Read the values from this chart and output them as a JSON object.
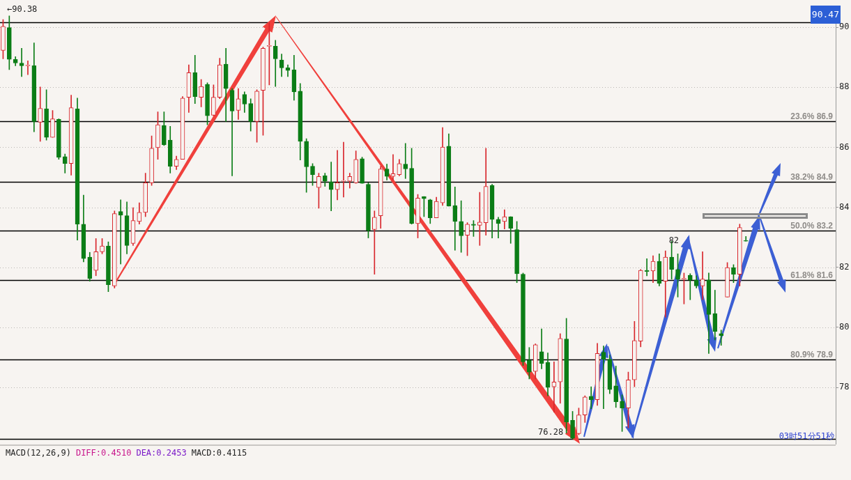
{
  "chart_data": {
    "type": "candlestick",
    "categories": [
      null,
      null,
      null,
      null,
      null,
      null,
      null,
      null,
      null,
      null,
      null,
      null,
      null,
      null,
      null,
      null,
      null,
      null,
      null,
      null,
      null,
      null,
      null,
      null,
      null,
      null,
      null,
      null,
      null,
      null,
      null,
      null,
      null,
      null,
      null,
      null,
      null,
      null,
      null,
      null,
      null,
      null,
      null,
      null,
      null,
      null,
      null,
      null,
      null,
      null,
      null,
      null,
      null,
      null,
      null,
      null,
      null,
      null,
      null,
      null,
      null,
      null,
      null,
      null,
      null,
      null,
      null,
      null,
      null,
      null,
      null,
      null,
      null,
      null,
      null,
      null,
      null,
      null,
      null,
      null,
      null,
      null,
      null,
      null,
      null,
      null,
      null,
      null,
      null,
      null,
      null,
      null,
      null,
      null,
      null,
      null,
      null,
      null,
      null,
      null,
      null,
      null,
      null,
      null,
      null,
      null,
      null,
      null,
      null,
      null,
      null,
      null,
      null,
      null,
      null,
      null,
      null,
      null,
      null,
      null,
      null,
      null,
      null,
      null,
      null,
      null,
      null,
      null,
      null,
      null,
      null,
      null,
      null,
      null,
      null
    ],
    "ohlc": [
      [
        89.23,
        90.26,
        88.95,
        90.03
      ],
      [
        89.99,
        90.38,
        88.59,
        88.93
      ],
      [
        88.93,
        89.02,
        88.72,
        88.81
      ],
      [
        88.81,
        89.3,
        88.36,
        88.72
      ],
      [
        88.72,
        88.88,
        88.42,
        88.72
      ],
      [
        88.72,
        89.48,
        86.52,
        86.86
      ],
      [
        86.84,
        88.01,
        86.2,
        87.3
      ],
      [
        87.28,
        87.92,
        86.24,
        86.33
      ],
      [
        86.33,
        87.23,
        86.33,
        86.95
      ],
      [
        86.93,
        86.95,
        85.6,
        85.67
      ],
      [
        85.69,
        85.78,
        85.14,
        85.46
      ],
      [
        85.46,
        87.74,
        85.07,
        87.32
      ],
      [
        87.28,
        87.64,
        82.91,
        83.44
      ],
      [
        83.44,
        84.41,
        82.18,
        82.29
      ],
      [
        82.34,
        82.5,
        81.54,
        81.63
      ],
      [
        81.9,
        82.96,
        81.72,
        82.52
      ],
      [
        82.52,
        82.96,
        82.45,
        82.71
      ],
      [
        82.71,
        82.85,
        81.19,
        81.42
      ],
      [
        81.38,
        83.88,
        81.31,
        83.79
      ],
      [
        83.86,
        84.25,
        82.11,
        83.74
      ],
      [
        83.72,
        84.18,
        82.45,
        82.73
      ],
      [
        82.8,
        83.99,
        82.73,
        83.56
      ],
      [
        83.53,
        84.15,
        83.44,
        83.83
      ],
      [
        83.83,
        85.14,
        83.69,
        84.82
      ],
      [
        84.82,
        86.38,
        84.73,
        85.97
      ],
      [
        85.99,
        87.18,
        85.6,
        86.75
      ],
      [
        86.73,
        87.18,
        86.06,
        86.08
      ],
      [
        86.24,
        86.7,
        85.14,
        85.37
      ],
      [
        85.37,
        85.71,
        85.26,
        85.6
      ],
      [
        85.6,
        87.69,
        85.6,
        87.64
      ],
      [
        87.67,
        88.75,
        87.16,
        88.49
      ],
      [
        88.49,
        89.07,
        87.46,
        87.69
      ],
      [
        87.67,
        88.26,
        87.35,
        88.03
      ],
      [
        88.1,
        88.15,
        86.75,
        87.05
      ],
      [
        87.07,
        88.08,
        87.05,
        87.67
      ],
      [
        87.67,
        88.97,
        87.62,
        88.75
      ],
      [
        88.77,
        89.3,
        86.86,
        87.96
      ],
      [
        87.9,
        87.96,
        85.05,
        87.21
      ],
      [
        87.23,
        87.96,
        86.93,
        87.62
      ],
      [
        87.76,
        87.85,
        87.16,
        87.44
      ],
      [
        87.46,
        87.62,
        86.54,
        86.86
      ],
      [
        86.86,
        87.92,
        86.17,
        87.87
      ],
      [
        87.9,
        89.34,
        86.4,
        89.3
      ],
      [
        89.37,
        90.16,
        88.08,
        89.37
      ],
      [
        89.37,
        89.57,
        88.03,
        88.95
      ],
      [
        88.91,
        89.11,
        88.36,
        88.65
      ],
      [
        88.65,
        88.75,
        88.36,
        88.56
      ],
      [
        88.58,
        89.07,
        87.57,
        87.85
      ],
      [
        87.87,
        88.13,
        85.58,
        86.2
      ],
      [
        86.2,
        86.29,
        84.5,
        85.35
      ],
      [
        85.37,
        85.46,
        84.73,
        85.09
      ],
      [
        84.66,
        85.14,
        83.97,
        85.03
      ],
      [
        85.05,
        85.14,
        84.7,
        84.87
      ],
      [
        84.84,
        85.51,
        83.88,
        84.59
      ],
      [
        84.59,
        85.9,
        84.25,
        84.82
      ],
      [
        84.87,
        86.17,
        84.34,
        84.87
      ],
      [
        84.87,
        85.14,
        84.64,
        85.03
      ],
      [
        84.82,
        85.88,
        84.8,
        85.6
      ],
      [
        85.62,
        85.67,
        84.8,
        84.8
      ],
      [
        84.77,
        84.82,
        82.98,
        83.23
      ],
      [
        83.26,
        83.88,
        81.77,
        83.67
      ],
      [
        83.72,
        85.37,
        83.3,
        85.28
      ],
      [
        85.28,
        85.44,
        84.91,
        85.03
      ],
      [
        85.03,
        85.76,
        84.91,
        85.12
      ],
      [
        85.09,
        85.6,
        85.05,
        85.46
      ],
      [
        85.44,
        86.13,
        84.96,
        85.28
      ],
      [
        85.3,
        85.97,
        83.44,
        83.46
      ],
      [
        83.46,
        84.43,
        82.98,
        84.31
      ],
      [
        84.36,
        84.36,
        83.69,
        84.29
      ],
      [
        84.25,
        84.27,
        83.46,
        83.65
      ],
      [
        83.65,
        84.34,
        83.65,
        84.2
      ],
      [
        84.15,
        86.66,
        84.06,
        86.01
      ],
      [
        86.04,
        86.45,
        84.04,
        84.04
      ],
      [
        84.06,
        84.68,
        82.57,
        83.53
      ],
      [
        83.53,
        84.22,
        82.5,
        83.05
      ],
      [
        83.07,
        83.49,
        82.39,
        83.44
      ],
      [
        83.44,
        83.56,
        83.03,
        83.4
      ],
      [
        83.4,
        84.5,
        82.73,
        83.51
      ],
      [
        83.49,
        85.97,
        83.07,
        84.7
      ],
      [
        84.73,
        84.77,
        82.98,
        83.6
      ],
      [
        83.6,
        83.67,
        82.98,
        83.46
      ],
      [
        83.53,
        83.92,
        83.28,
        83.69
      ],
      [
        83.69,
        83.69,
        82.8,
        83.3
      ],
      [
        83.26,
        83.53,
        81.49,
        81.79
      ],
      [
        81.77,
        81.81,
        78.73,
        78.85
      ],
      [
        78.9,
        79.33,
        78.28,
        78.51
      ],
      [
        78.53,
        79.45,
        78.28,
        79.42
      ],
      [
        79.19,
        79.95,
        78.62,
        78.8
      ],
      [
        78.83,
        79.15,
        77.72,
        78.0
      ],
      [
        78.02,
        78.85,
        77.17,
        78.18
      ],
      [
        78.18,
        79.79,
        77.47,
        79.63
      ],
      [
        79.61,
        80.3,
        76.48,
        76.85
      ],
      [
        76.9,
        77.2,
        76.28,
        76.3
      ],
      [
        76.46,
        77.31,
        76.42,
        77.08
      ],
      [
        77.08,
        77.72,
        76.83,
        77.68
      ],
      [
        77.7,
        78.02,
        77.29,
        77.59
      ],
      [
        77.59,
        79.47,
        77.4,
        79.13
      ],
      [
        79.17,
        79.38,
        77.29,
        78.94
      ],
      [
        78.94,
        79.08,
        77.79,
        77.93
      ],
      [
        78.05,
        78.71,
        77.33,
        77.52
      ],
      [
        77.54,
        77.75,
        76.53,
        77.31
      ],
      [
        77.31,
        78.51,
        76.65,
        78.25
      ],
      [
        78.25,
        80.2,
        78.02,
        79.56
      ],
      [
        79.54,
        81.93,
        79.35,
        81.9
      ],
      [
        81.9,
        82.29,
        81.72,
        81.86
      ],
      [
        81.88,
        82.39,
        81.49,
        82.2
      ],
      [
        82.2,
        82.45,
        81.38,
        81.47
      ],
      [
        81.54,
        82.55,
        80.34,
        82.34
      ],
      [
        82.34,
        82.87,
        81.61,
        81.93
      ],
      [
        81.93,
        82.45,
        81.01,
        81.61
      ],
      [
        81.61,
        81.81,
        80.78,
        81.61
      ],
      [
        81.74,
        81.79,
        80.92,
        81.58
      ],
      [
        81.58,
        81.72,
        81.31,
        81.38
      ],
      [
        81.38,
        82.52,
        80.92,
        81.61
      ],
      [
        81.58,
        81.81,
        79.13,
        80.43
      ],
      [
        80.46,
        81.24,
        79.58,
        79.86
      ],
      [
        79.79,
        79.91,
        79.4,
        79.72
      ],
      [
        81.01,
        82.16,
        81.01,
        81.99
      ],
      [
        81.99,
        82.09,
        81.49,
        81.77
      ],
      [
        81.77,
        83.44,
        81.38,
        83.33
      ],
      [
        82.89,
        83.03,
        82.87,
        82.87
      ],
      null,
      null,
      null,
      null,
      null,
      null,
      null,
      null,
      null,
      null,
      null,
      null,
      null,
      null
    ],
    "ylim": [
      76.12,
      90.72
    ],
    "yticks": [
      78,
      80,
      82,
      84,
      86,
      88,
      90
    ],
    "tick_labels": "y",
    "grid": "y",
    "legend": false,
    "ref_lines": [
      {
        "axis": "y",
        "value": 90.16,
        "label": null,
        "color": "#000000"
      },
      {
        "axis": "y",
        "value": 86.88,
        "label": "23.6% 86.9",
        "color": "#000000"
      },
      {
        "axis": "y",
        "value": 84.86,
        "label": "38.2% 84.9",
        "color": "#000000"
      },
      {
        "axis": "y",
        "value": 83.22,
        "label": "50.0% 83.2",
        "color": "#000000"
      },
      {
        "axis": "y",
        "value": 81.58,
        "label": "61.8% 81.6",
        "color": "#000000"
      },
      {
        "axis": "y",
        "value": 78.92,
        "label": "80.9% 78.9",
        "color": "#000000"
      },
      {
        "axis": "y",
        "value": 76.28,
        "label": null,
        "color": "#000000"
      }
    ],
    "annotations": [
      "90.47",
      "03时51分51秒",
      "MACD(12,26,9)",
      "DIFF:0.4510",
      "DEA:0.2453",
      "MACD:0.4115",
      "←90.38",
      "76.28",
      {
        "text": "82",
        "y": 82.87
      }
    ]
  }
}
